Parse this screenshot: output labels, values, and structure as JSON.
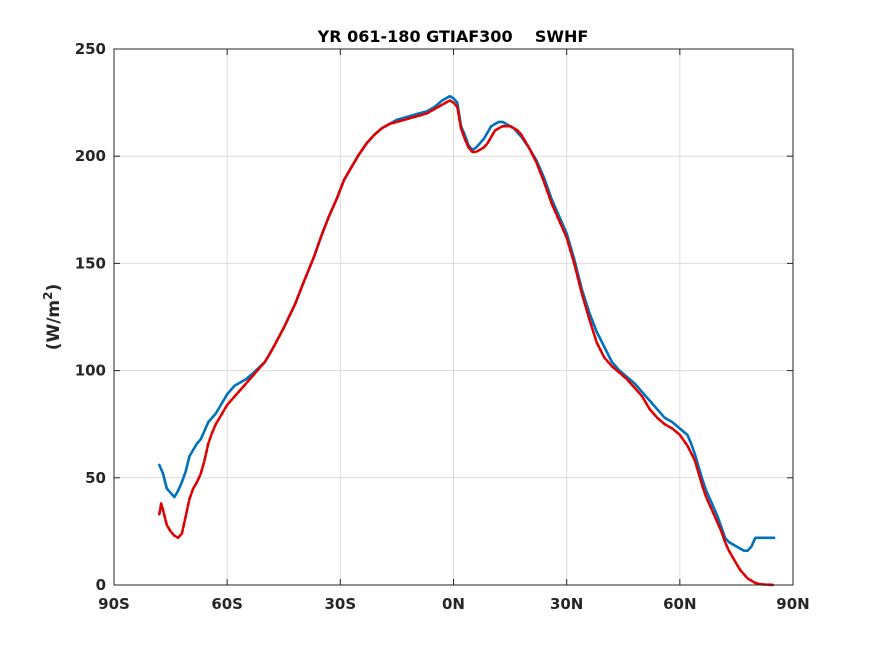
{
  "chart_data": {
    "type": "line",
    "title": "YR 061-180 GTIAF300    SWHF",
    "ylabel_main": "(W/m",
    "ylabel_sup": "2",
    "ylabel_tail": ")",
    "xlabel": "",
    "xlim": [
      -90,
      90
    ],
    "ylim": [
      0,
      250
    ],
    "grid": true,
    "x_ticks": [
      -90,
      -60,
      -30,
      0,
      30,
      60,
      90
    ],
    "x_tick_labels": [
      "90S",
      "60S",
      "30S",
      "0N",
      "30N",
      "60N",
      "90N"
    ],
    "y_ticks": [
      0,
      50,
      100,
      150,
      200,
      250
    ],
    "y_tick_labels": [
      "0",
      "50",
      "100",
      "150",
      "200",
      "250"
    ],
    "series": [
      {
        "color": "#0072BD",
        "style": "solid",
        "x": [
          -78,
          -77,
          -76,
          -75,
          -74,
          -73,
          -72,
          -71,
          -70,
          -69,
          -68,
          -67,
          -65,
          -63,
          -61,
          -60,
          -59,
          -58,
          -57,
          -56,
          -55,
          -53,
          -50,
          -48,
          -45,
          -42,
          -40,
          -37,
          -35,
          -33,
          -31,
          -29,
          -27,
          -25,
          -23,
          -21,
          -19,
          -17,
          -15,
          -13,
          -11,
          -9,
          -7,
          -5,
          -3,
          -1,
          0,
          1,
          2,
          3,
          4,
          5,
          6,
          7,
          8,
          9,
          10,
          11,
          12,
          13,
          14,
          15,
          16,
          17,
          18,
          20,
          22,
          24,
          26,
          28,
          30,
          32,
          34,
          36,
          38,
          40,
          42,
          44,
          46,
          48,
          50,
          52,
          54,
          56,
          58,
          60,
          62,
          63,
          64,
          65,
          66,
          67,
          68,
          69,
          70,
          71,
          72,
          73,
          74,
          75,
          76,
          77,
          78,
          79,
          80,
          81,
          82,
          83,
          84,
          85
        ],
        "y": [
          56,
          52,
          45,
          43,
          41,
          44,
          48,
          53,
          60,
          63,
          66,
          68,
          76,
          80,
          86,
          89,
          91,
          93,
          94,
          95,
          96,
          99,
          104,
          110,
          120,
          131,
          140,
          153,
          163,
          172,
          180,
          189,
          195,
          201,
          206,
          210,
          213,
          215,
          217,
          218,
          219,
          220,
          221,
          223,
          226,
          228,
          227,
          225,
          214,
          210,
          205,
          203,
          204,
          206,
          208,
          211,
          214,
          215,
          216,
          216,
          215,
          214,
          213,
          211,
          209,
          204,
          198,
          190,
          180,
          172,
          164,
          152,
          138,
          127,
          118,
          111,
          104,
          100,
          97,
          94,
          90,
          86,
          82,
          78,
          76,
          73,
          70,
          66,
          61,
          55,
          49,
          44,
          40,
          36,
          32,
          27,
          22,
          20,
          19,
          18,
          17,
          16,
          16,
          18,
          22,
          22,
          22,
          22,
          22,
          22
        ]
      },
      {
        "color": "#E00000",
        "style": "dashed",
        "x": [
          -78,
          -77.5,
          -77,
          -76,
          -75,
          -74,
          -73,
          -72,
          -71,
          -70,
          -69,
          -68,
          -67,
          -66,
          -65,
          -64,
          -63,
          -62,
          -61,
          -60,
          -58,
          -56,
          -54,
          -52,
          -50,
          -48,
          -45,
          -42,
          -40,
          -37,
          -35,
          -33,
          -31,
          -29,
          -27,
          -25,
          -23,
          -21,
          -19,
          -17,
          -15,
          -13,
          -11,
          -9,
          -7,
          -5,
          -3,
          -1,
          0,
          1,
          2,
          3,
          4,
          5,
          6,
          7,
          8,
          9,
          10,
          11,
          12,
          13,
          14,
          15,
          16,
          17,
          18,
          20,
          22,
          24,
          26,
          28,
          30,
          32,
          34,
          36,
          38,
          40,
          42,
          44,
          46,
          48,
          50,
          52,
          54,
          56,
          58,
          60,
          62,
          64,
          65,
          66,
          67,
          68,
          69,
          70,
          71,
          72,
          73,
          74,
          75,
          76,
          77,
          78,
          79,
          80,
          81,
          82,
          83,
          84,
          85
        ],
        "y": [
          33,
          38,
          35,
          28,
          25,
          23,
          22,
          24,
          32,
          40,
          45,
          48,
          52,
          58,
          66,
          71,
          75,
          78,
          81,
          84,
          88,
          92,
          96,
          100,
          104,
          110,
          120,
          131,
          140,
          153,
          163,
          172,
          180,
          189,
          195,
          201,
          206,
          210,
          213,
          215,
          216,
          217,
          218,
          219,
          220,
          222,
          224,
          226,
          225,
          223,
          213,
          208,
          204,
          202,
          202,
          203,
          204,
          206,
          209,
          212,
          213,
          214,
          214,
          214,
          213,
          212,
          210,
          204,
          197,
          188,
          178,
          170,
          162,
          150,
          136,
          124,
          113,
          106,
          102,
          99,
          96,
          92,
          88,
          82,
          78,
          75,
          73,
          70,
          65,
          58,
          52,
          46,
          41,
          37,
          33,
          29,
          25,
          20,
          16,
          13,
          10,
          7,
          5,
          3,
          2,
          1,
          0.5,
          0.3,
          0.2,
          0.1,
          0
        ]
      }
    ]
  }
}
